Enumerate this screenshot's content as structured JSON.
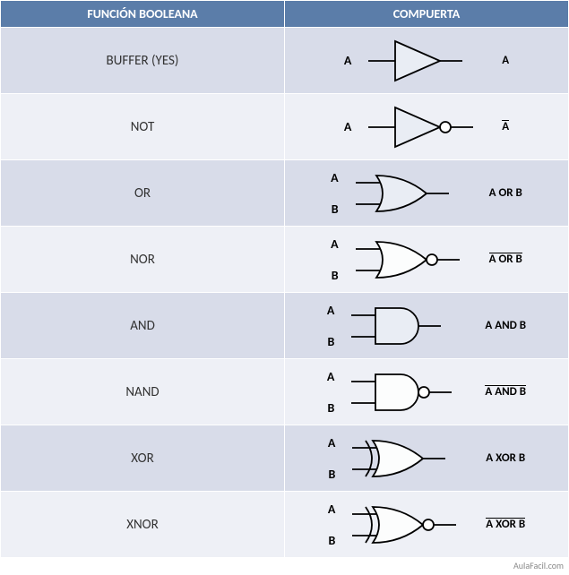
{
  "headers": {
    "col1": "FUNCIÓN BOOLEANA",
    "col2": "COMPUERTA"
  },
  "footer": "AulaFacil.com",
  "colors": {
    "headerBg": "#5b7da9",
    "rowOdd": "#d8dce9",
    "rowEven": "#eef0f6",
    "stroke": "#000000",
    "gateFill": "#e9edf4",
    "gateFillWhite": "#fcfdfd"
  },
  "rows": [
    {
      "name": "BUFFER (YES)",
      "type": "buffer",
      "inputs": [
        "A"
      ],
      "output": "A",
      "overline": false,
      "bubble": false,
      "fillWhite": false
    },
    {
      "name": "NOT",
      "type": "buffer",
      "inputs": [
        "A"
      ],
      "output": "A",
      "overline": true,
      "bubble": true,
      "fillWhite": false
    },
    {
      "name": "OR",
      "type": "or",
      "inputs": [
        "A",
        "B"
      ],
      "output": "A OR B",
      "overline": false,
      "bubble": false,
      "fillWhite": false
    },
    {
      "name": "NOR",
      "type": "or",
      "inputs": [
        "A",
        "B"
      ],
      "output": "A OR B",
      "overline": true,
      "bubble": true,
      "fillWhite": true
    },
    {
      "name": "AND",
      "type": "and",
      "inputs": [
        "A",
        "B"
      ],
      "output": "A AND B",
      "overline": false,
      "bubble": false,
      "fillWhite": false
    },
    {
      "name": "NAND",
      "type": "and",
      "inputs": [
        "A",
        "B"
      ],
      "output": "A AND B",
      "overline": true,
      "bubble": true,
      "fillWhite": true
    },
    {
      "name": "XOR",
      "type": "xor",
      "inputs": [
        "A",
        "B"
      ],
      "output": "A XOR B",
      "overline": false,
      "bubble": false,
      "fillWhite": true
    },
    {
      "name": "XNOR",
      "type": "xor",
      "inputs": [
        "A",
        "B"
      ],
      "output": "A XOR B",
      "overline": true,
      "bubble": true,
      "fillWhite": true
    }
  ]
}
